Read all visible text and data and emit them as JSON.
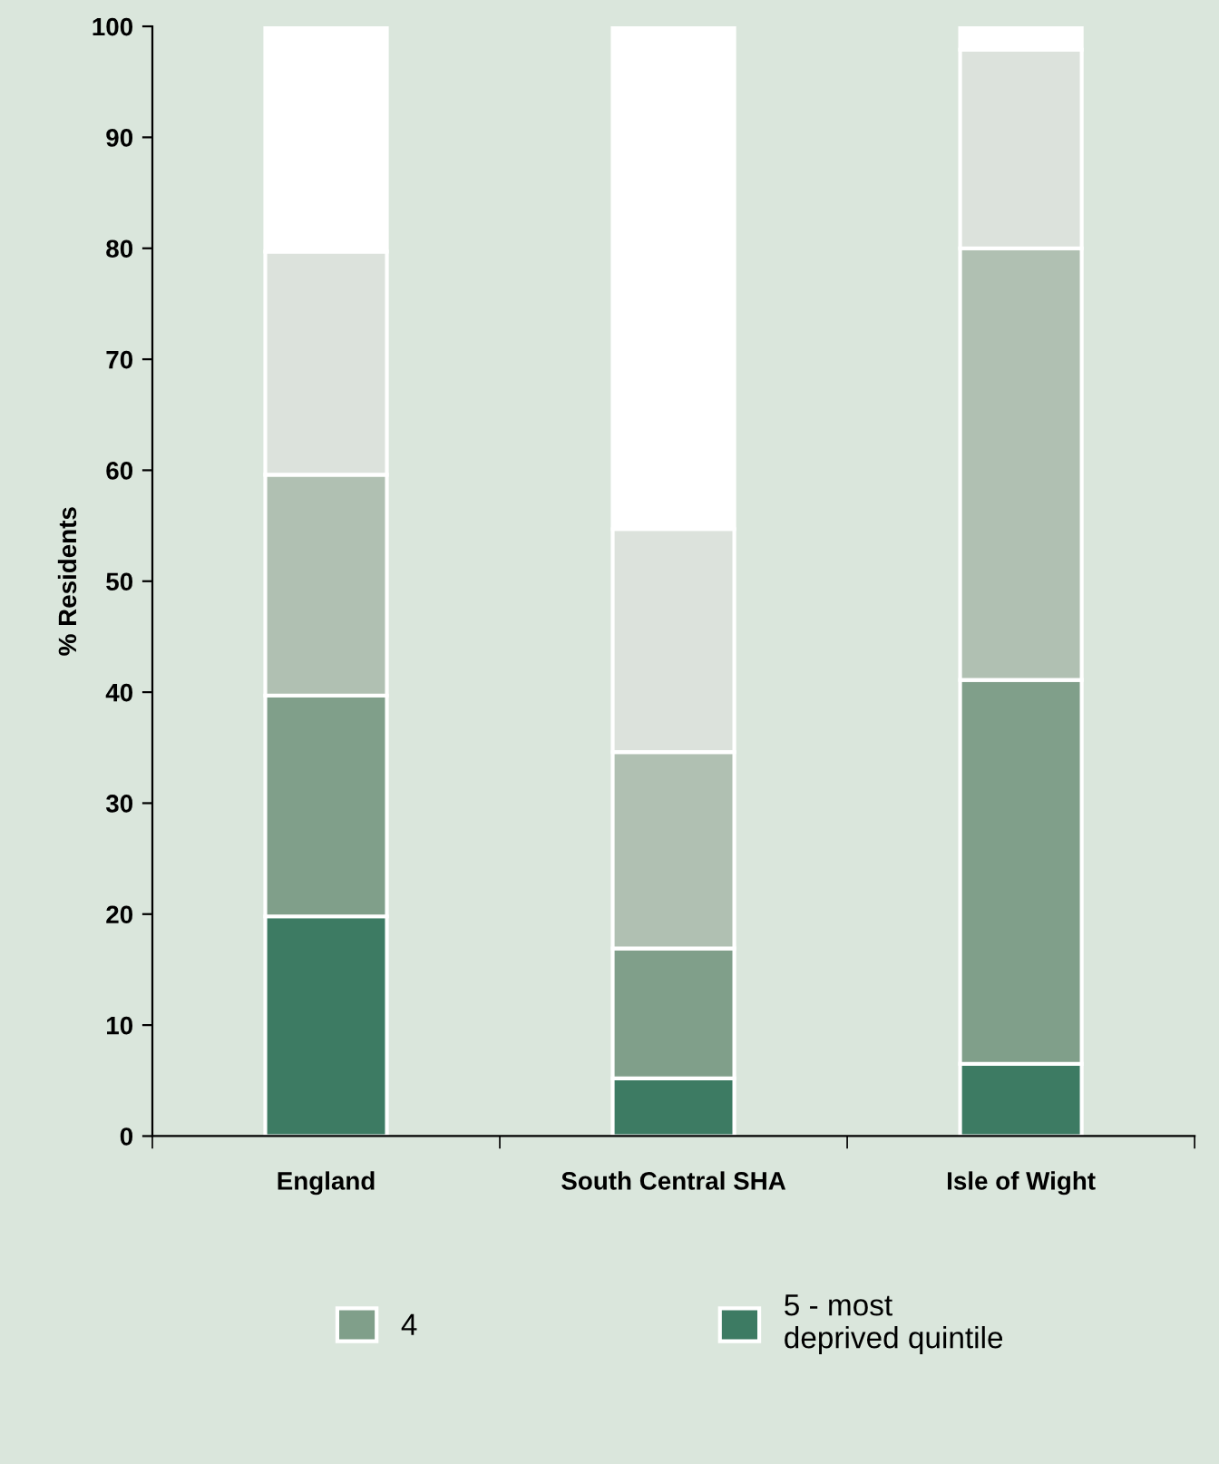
{
  "chart_data": {
    "type": "bar",
    "stacked": true,
    "ylabel": "% Residents",
    "categories": [
      "England",
      "South Central SHA",
      "Isle of Wight"
    ],
    "series": [
      {
        "name": "5 - most\ndeprived quintile",
        "color": "#3d7b63",
        "values": [
          19.8,
          5.2,
          6.5
        ]
      },
      {
        "name": "4",
        "color": "#809f8a",
        "values": [
          19.9,
          11.7,
          34.6
        ]
      },
      {
        "color": "#b0c0b2",
        "values": [
          19.9,
          17.7,
          38.9
        ]
      },
      {
        "color": "#dce2dc",
        "values": [
          20.1,
          20.1,
          17.9
        ]
      },
      {
        "color": "#ffffff",
        "values": [
          20.3,
          45.3,
          2.1
        ]
      }
    ],
    "ylim": [
      0,
      100
    ],
    "yticks": [
      0,
      10,
      20,
      30,
      40,
      50,
      60,
      70,
      80,
      90,
      100
    ],
    "grid": false,
    "legend": "bottom"
  }
}
